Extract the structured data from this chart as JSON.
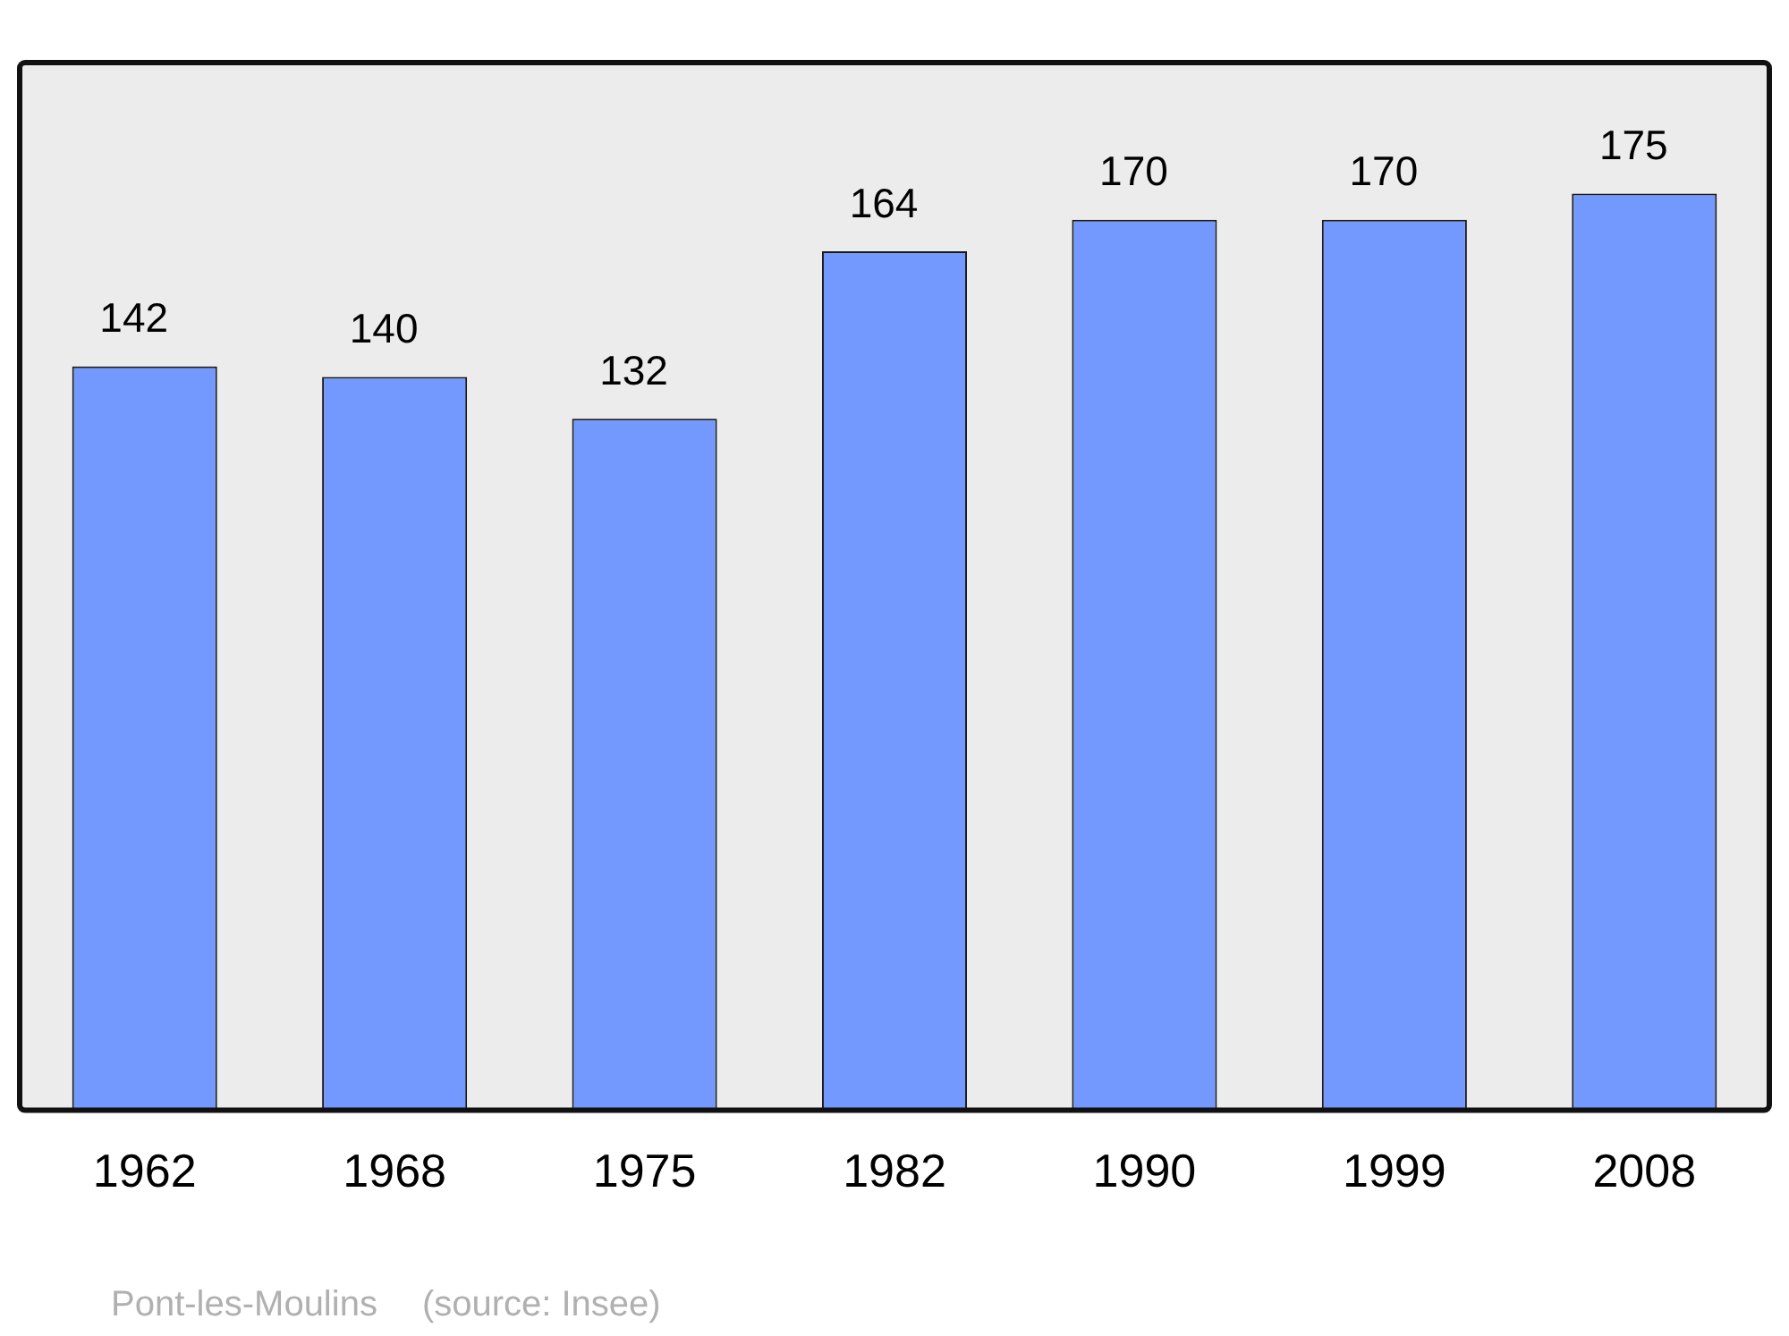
{
  "chart_data": {
    "type": "bar",
    "categories": [
      "1962",
      "1968",
      "1975",
      "1982",
      "1990",
      "1999",
      "2008"
    ],
    "values": [
      142,
      140,
      132,
      164,
      170,
      170,
      175
    ],
    "color": "#7399ff",
    "data_labels": true,
    "grid": false,
    "legend": false,
    "annotations": [
      "Pont-les-Moulins",
      "(source: Insee)"
    ]
  }
}
